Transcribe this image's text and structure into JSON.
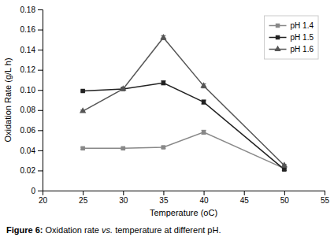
{
  "chart_data": {
    "type": "line",
    "xlabel": "Temperature (oC)",
    "ylabel": "Oxidation Rate (g/L h)",
    "annotations": [
      "Figure 6:",
      " Oxidation rate ",
      "vs.",
      " temperature at different pH."
    ],
    "x": [
      25,
      30,
      35,
      40,
      50
    ],
    "series": [
      {
        "name": "pH 1.4",
        "color": "#888888",
        "marker": "square",
        "line_style": "solid",
        "values": [
          0.042,
          0.042,
          0.043,
          0.058,
          0.022
        ],
        "errors": [
          0.001,
          0.001,
          0.001,
          0.002,
          0.001
        ]
      },
      {
        "name": "pH 1.5",
        "color": "#222222",
        "marker": "square",
        "line_style": "solid",
        "values": [
          0.099,
          0.101,
          0.107,
          0.088,
          0.021
        ],
        "errors": [
          0.001,
          0.001,
          0.002,
          0.002,
          0.001
        ]
      },
      {
        "name": "pH 1.6",
        "color": "#555555",
        "marker": "triangle",
        "line_style": "solid",
        "values": [
          0.079,
          0.101,
          0.152,
          0.104,
          0.025
        ],
        "errors": [
          0.001,
          0.001,
          0.002,
          0.002,
          0.001
        ]
      }
    ],
    "xlim": [
      20,
      55
    ],
    "ylim": [
      0,
      0.18
    ],
    "xticks": [
      20,
      25,
      30,
      35,
      40,
      45,
      50,
      55
    ],
    "yticks": [
      0,
      0.02,
      0.04,
      0.06,
      0.08,
      {
        "value": 0.1,
        "label": "0.10"
      },
      0.12,
      0.14,
      0.16,
      0.18
    ],
    "legend": "upper right",
    "grid": false
  }
}
